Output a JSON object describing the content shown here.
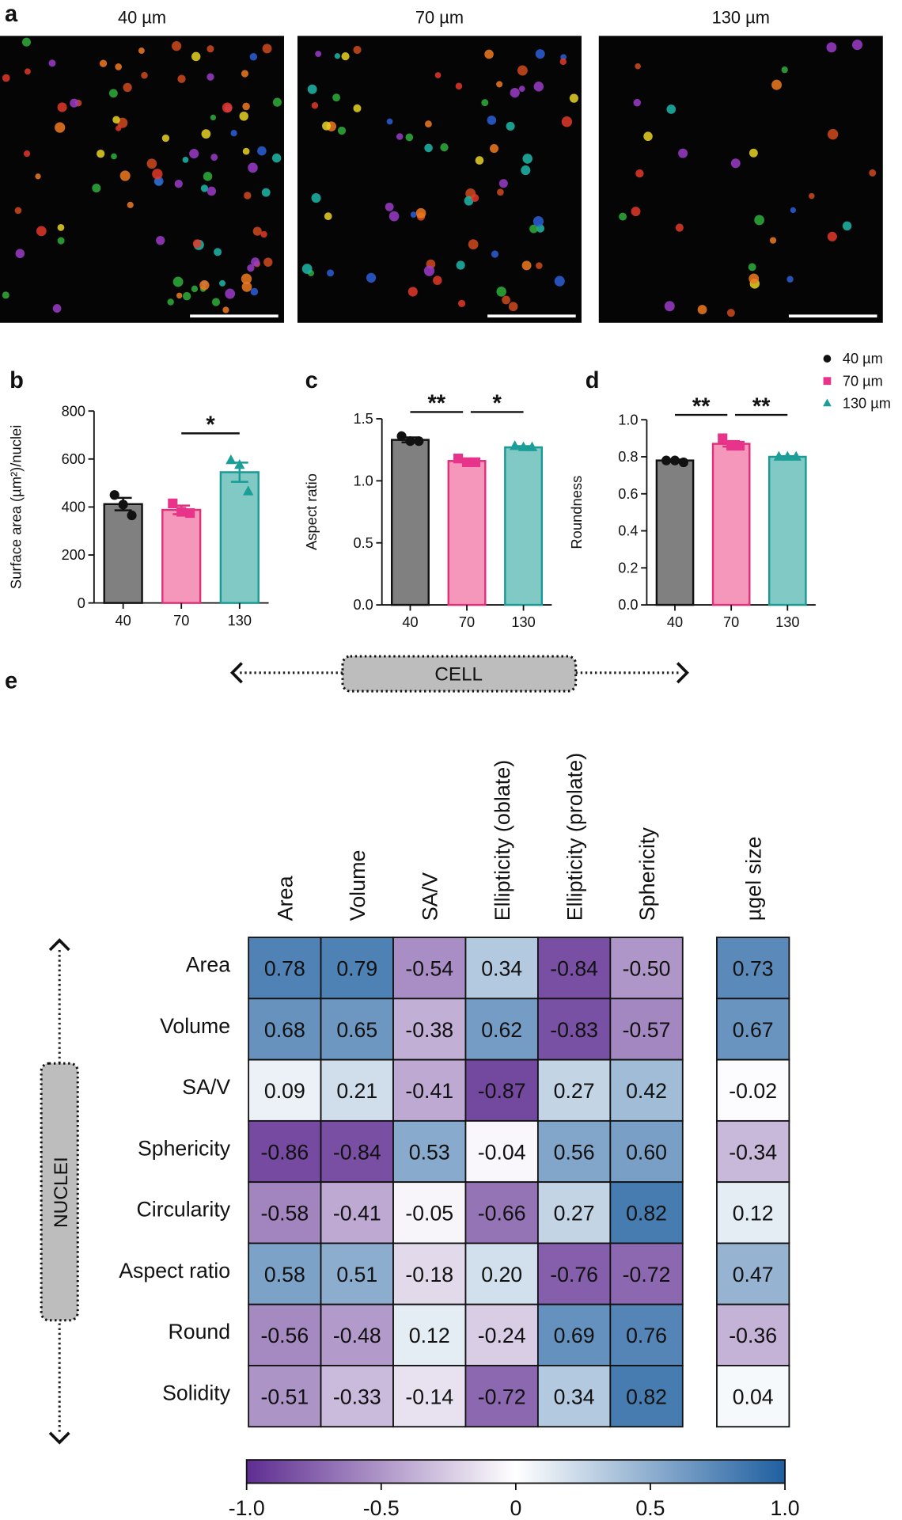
{
  "images": {
    "panel": "a",
    "titles": [
      "40 µm",
      "70 µm",
      "130 µm"
    ]
  },
  "cell_label": "CELL",
  "nuclei_label": "NUCLEI",
  "chart_data": [
    {
      "type": "bar",
      "panel": "b",
      "ylabel": "Surface area (µm²)/nuclei",
      "categories": [
        "40",
        "70",
        "130"
      ],
      "values": [
        412,
        388,
        545
      ],
      "errors": [
        26,
        18,
        40
      ],
      "points": [
        [
          450,
          410,
          365
        ],
        [
          415,
          380,
          375
        ],
        [
          595,
          575,
          465
        ]
      ],
      "colors": [
        "#808080",
        "#f597bb",
        "#80c9c5"
      ],
      "edge_colors": [
        "#111111",
        "#e0307a",
        "#1a9a94"
      ],
      "point_colors": [
        "#111111",
        "#e8338a",
        "#1b9e98"
      ],
      "markers": [
        "circle",
        "square",
        "triangle"
      ],
      "ylim": [
        0,
        800
      ],
      "yticks": [
        0,
        200,
        400,
        600,
        800
      ],
      "significance": [
        {
          "pair": [
            "70",
            "130"
          ],
          "label": "*"
        }
      ]
    },
    {
      "type": "bar",
      "panel": "c",
      "ylabel": "Aspect ratio",
      "categories": [
        "40",
        "70",
        "130"
      ],
      "values": [
        1.33,
        1.16,
        1.27
      ],
      "errors": [
        0.02,
        0.01,
        0.01
      ],
      "points": [
        [
          1.36,
          1.32,
          1.32
        ],
        [
          1.18,
          1.15,
          1.15
        ],
        [
          1.28,
          1.27,
          1.27
        ]
      ],
      "colors": [
        "#808080",
        "#f597bb",
        "#80c9c5"
      ],
      "edge_colors": [
        "#111111",
        "#e0307a",
        "#1a9a94"
      ],
      "point_colors": [
        "#111111",
        "#e8338a",
        "#1b9e98"
      ],
      "markers": [
        "circle",
        "square",
        "triangle"
      ],
      "ylim": [
        0,
        1.5
      ],
      "yticks": [
        {
          "value": 0,
          "label": "0.0"
        },
        0.5,
        {
          "value": 1,
          "label": "1.0"
        },
        1.5
      ],
      "significance": [
        {
          "pair": [
            "40",
            "70"
          ],
          "label": "**"
        },
        {
          "pair": [
            "70",
            "130"
          ],
          "label": "*"
        }
      ]
    },
    {
      "type": "bar",
      "panel": "d",
      "ylabel": "Roundness",
      "categories": [
        "40",
        "70",
        "130"
      ],
      "values": [
        0.78,
        0.87,
        0.8
      ],
      "errors": [
        0.005,
        0.015,
        0.003
      ],
      "points": [
        [
          0.78,
          0.78,
          0.77
        ],
        [
          0.9,
          0.86,
          0.86
        ],
        [
          0.8,
          0.8,
          0.8
        ]
      ],
      "colors": [
        "#808080",
        "#f597bb",
        "#80c9c5"
      ],
      "edge_colors": [
        "#111111",
        "#e0307a",
        "#1a9a94"
      ],
      "point_colors": [
        "#111111",
        "#e8338a",
        "#1b9e98"
      ],
      "markers": [
        "circle",
        "square",
        "triangle"
      ],
      "ylim": [
        0,
        1
      ],
      "yticks": [
        {
          "value": 0,
          "label": "0.0"
        },
        0.2,
        0.4,
        0.6,
        0.8,
        {
          "value": 1,
          "label": "1.0"
        }
      ],
      "significance": [
        {
          "pair": [
            "40",
            "70"
          ],
          "label": "**"
        },
        {
          "pair": [
            "70",
            "130"
          ],
          "label": "**"
        }
      ],
      "legend": [
        {
          "name": "40 µm",
          "color": "#111111",
          "marker": "circle"
        },
        {
          "name": "70 µm",
          "color": "#e8338a",
          "marker": "square"
        },
        {
          "name": "130 µm",
          "color": "#1b9e98",
          "marker": "triangle"
        }
      ]
    },
    {
      "type": "heatmap",
      "panel": "e",
      "columns": [
        "Area",
        "Volume",
        "SA/V",
        "Ellipticity (oblate)",
        "Ellipticity (prolate)",
        "Sphericity"
      ],
      "rows": [
        "Area",
        "Volume",
        "SA/V",
        "Sphericity",
        "Circularity",
        "Aspect ratio",
        "Round",
        "Solidity"
      ],
      "values": [
        [
          0.78,
          0.79,
          -0.54,
          0.34,
          -0.84,
          -0.5
        ],
        [
          0.68,
          0.65,
          -0.38,
          0.62,
          -0.83,
          -0.57
        ],
        [
          0.09,
          0.21,
          -0.41,
          -0.87,
          0.27,
          0.42
        ],
        [
          -0.86,
          -0.84,
          0.53,
          -0.04,
          0.56,
          0.6
        ],
        [
          -0.58,
          -0.41,
          -0.05,
          -0.66,
          0.27,
          0.82
        ],
        [
          0.58,
          0.51,
          -0.18,
          0.2,
          -0.76,
          -0.72
        ],
        [
          -0.56,
          -0.48,
          0.12,
          -0.24,
          0.69,
          0.76
        ],
        [
          -0.51,
          -0.33,
          -0.14,
          -0.72,
          0.34,
          0.82
        ]
      ],
      "value_labels": [
        [
          "0.78",
          "0.79",
          "-0.54",
          "0.34",
          "-0.84",
          "-0.50"
        ],
        [
          "0.68",
          "0.65",
          "-0.38",
          "0.62",
          "-0.83",
          "-0.57"
        ],
        [
          "0.09",
          "0.21",
          "-0.41",
          "-0.87",
          "0.27",
          "0.42"
        ],
        [
          "-0.86",
          "-0.84",
          "0.53",
          "-0.04",
          "0.56",
          "0.60"
        ],
        [
          "-0.58",
          "-0.41",
          "-0.05",
          "-0.66",
          "0.27",
          "0.82"
        ],
        [
          "0.58",
          "0.51",
          "-0.18",
          "0.20",
          "-0.76",
          "-0.72"
        ],
        [
          "-0.56",
          "-0.48",
          "0.12",
          "-0.24",
          "0.69",
          "0.76"
        ],
        [
          "-0.51",
          "-0.33",
          "-0.14",
          "-0.72",
          "0.34",
          "0.82"
        ]
      ],
      "extra_column": {
        "label": "µgel size",
        "values": [
          0.73,
          0.67,
          -0.02,
          -0.34,
          0.12,
          0.47,
          -0.36,
          0.04
        ],
        "value_labels": [
          "0.73",
          "0.67",
          "-0.02",
          "-0.34",
          "0.12",
          "0.47",
          "-0.36",
          "0.04"
        ]
      },
      "colormap": [
        "#5e2d91",
        "#ffffff",
        "#1f5fa0"
      ],
      "clim": [
        -1,
        1
      ],
      "cticks": [
        {
          "value": -1,
          "label": "-1.0"
        },
        -0.5,
        0,
        0.5,
        {
          "value": 1,
          "label": "1.0"
        }
      ]
    }
  ]
}
